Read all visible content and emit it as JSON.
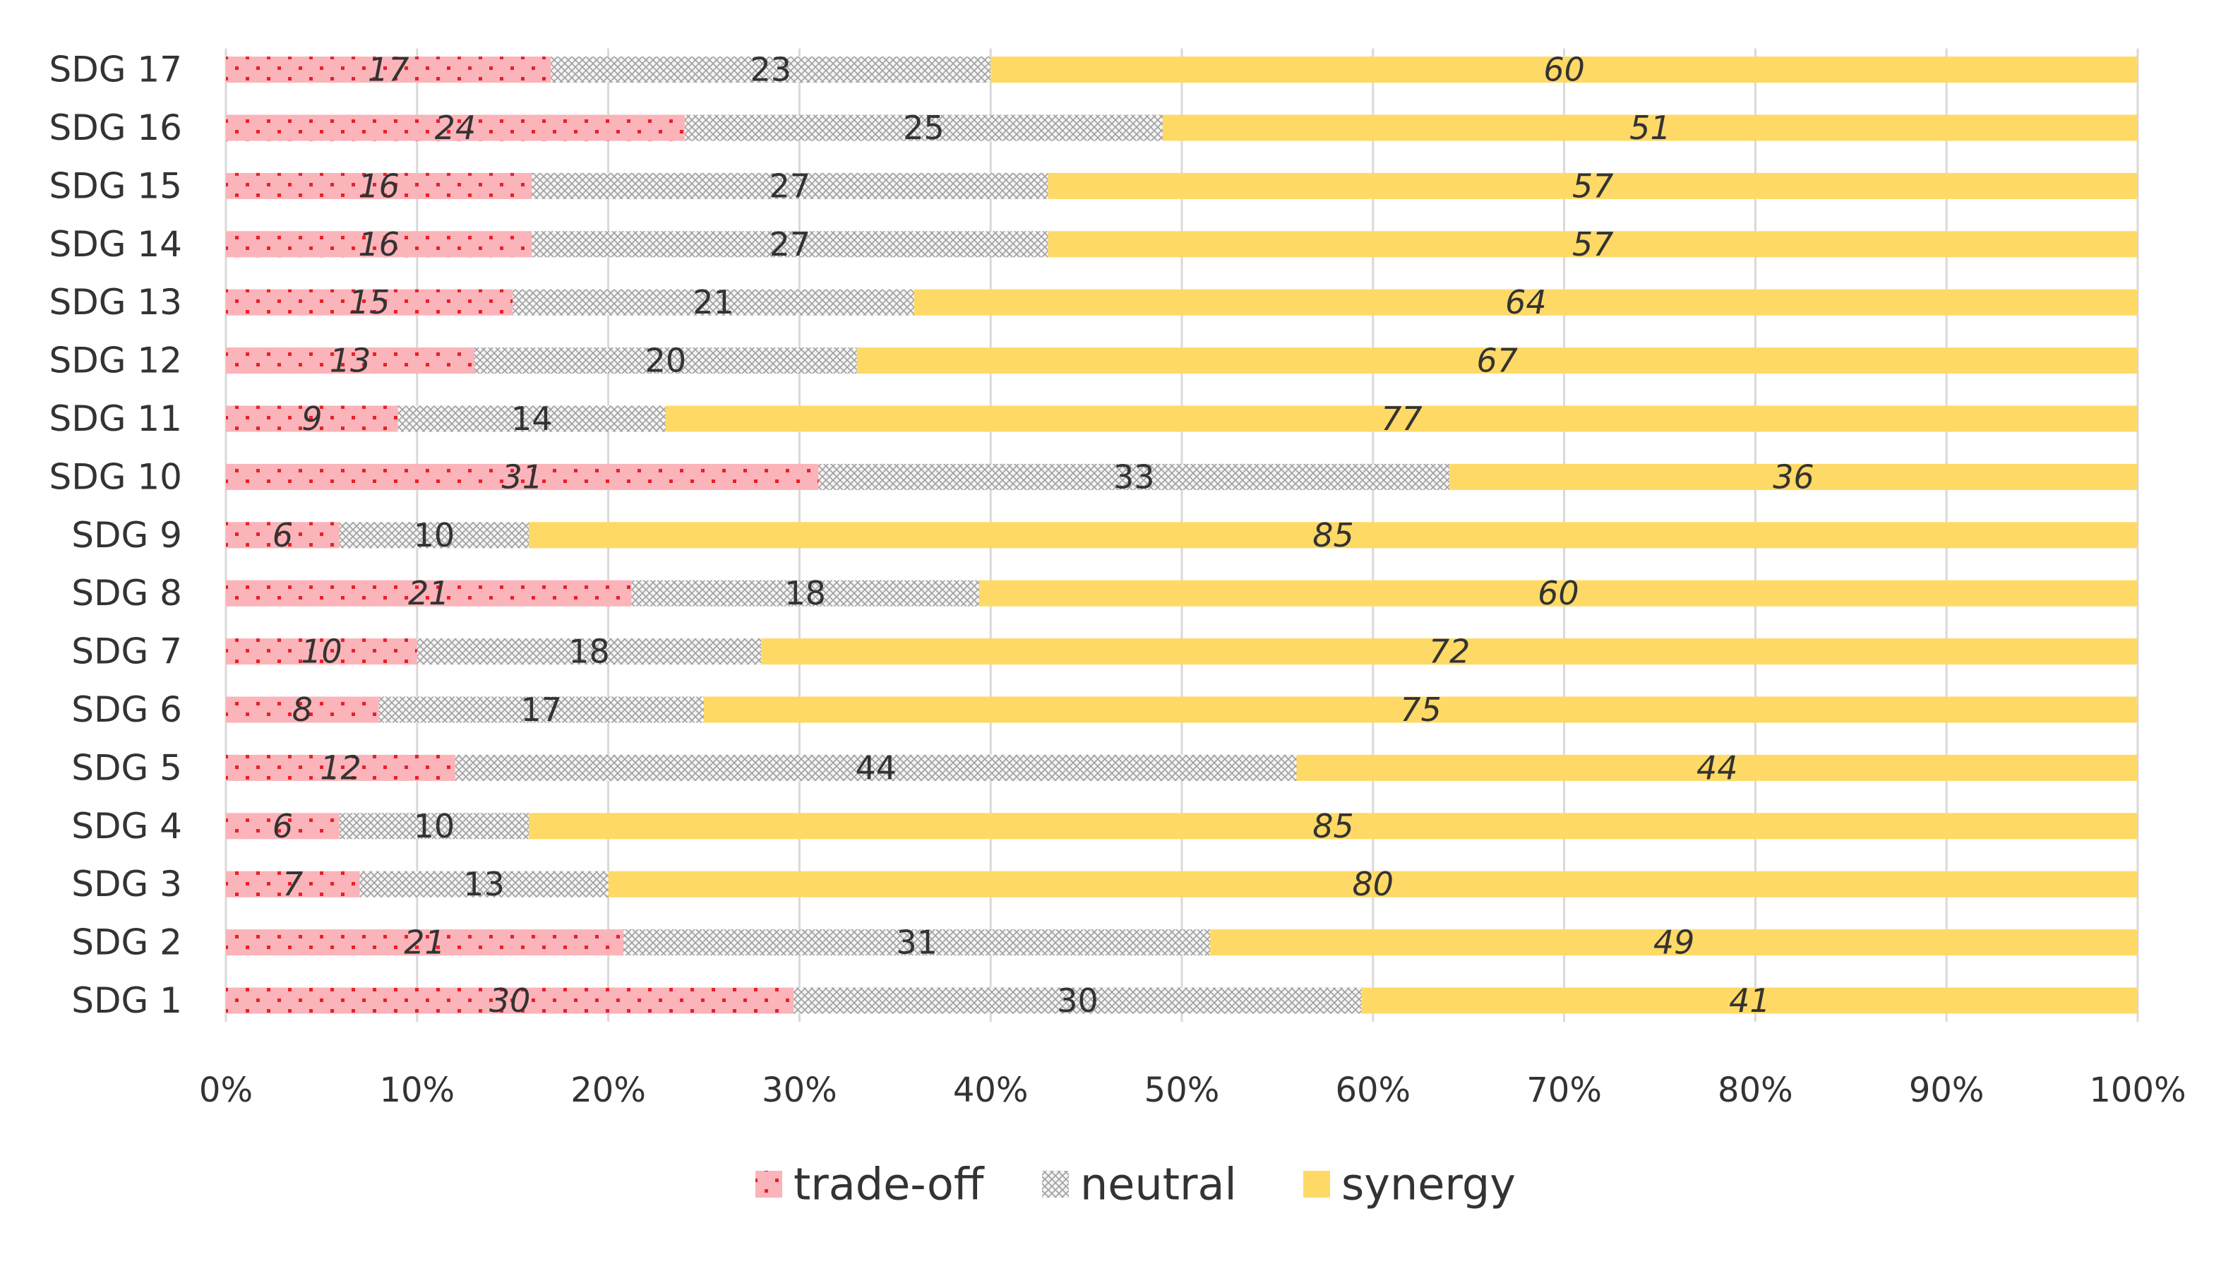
{
  "chart_data": {
    "type": "bar",
    "orientation": "horizontal",
    "stacking": "percent",
    "categories": [
      "SDG 1",
      "SDG 2",
      "SDG 3",
      "SDG 4",
      "SDG 5",
      "SDG 6",
      "SDG 7",
      "SDG 8",
      "SDG 9",
      "SDG 10",
      "SDG 11",
      "SDG 12",
      "SDG 13",
      "SDG 14",
      "SDG 15",
      "SDG 16",
      "SDG 17"
    ],
    "series": [
      {
        "name": "trade-off",
        "values": [
          30,
          21,
          7,
          6,
          12,
          8,
          10,
          21,
          6,
          31,
          9,
          13,
          15,
          16,
          16,
          24,
          17
        ],
        "color": "#fbb4b9",
        "pattern": "dots",
        "dot_color": "#e8202a",
        "label_style": "italic"
      },
      {
        "name": "neutral",
        "values": [
          30,
          31,
          13,
          10,
          44,
          17,
          18,
          18,
          10,
          33,
          14,
          20,
          21,
          27,
          27,
          25,
          23
        ],
        "color": "#f2f2f2",
        "pattern": "crosshatch",
        "hatch_color": "#a6a6a6",
        "label_style": "normal"
      },
      {
        "name": "synergy",
        "values": [
          41,
          49,
          80,
          85,
          44,
          75,
          72,
          60,
          85,
          36,
          77,
          67,
          64,
          57,
          57,
          51,
          60
        ],
        "color": "#ffd966",
        "pattern": "solid",
        "label_style": "italic"
      }
    ],
    "x_ticks": [
      "0%",
      "10%",
      "20%",
      "30%",
      "40%",
      "50%",
      "60%",
      "70%",
      "80%",
      "90%",
      "100%"
    ],
    "xlim": [
      0,
      100
    ],
    "title": "",
    "xlabel": "",
    "ylabel": "",
    "grid": "vertical",
    "legend": "bottom-center"
  }
}
